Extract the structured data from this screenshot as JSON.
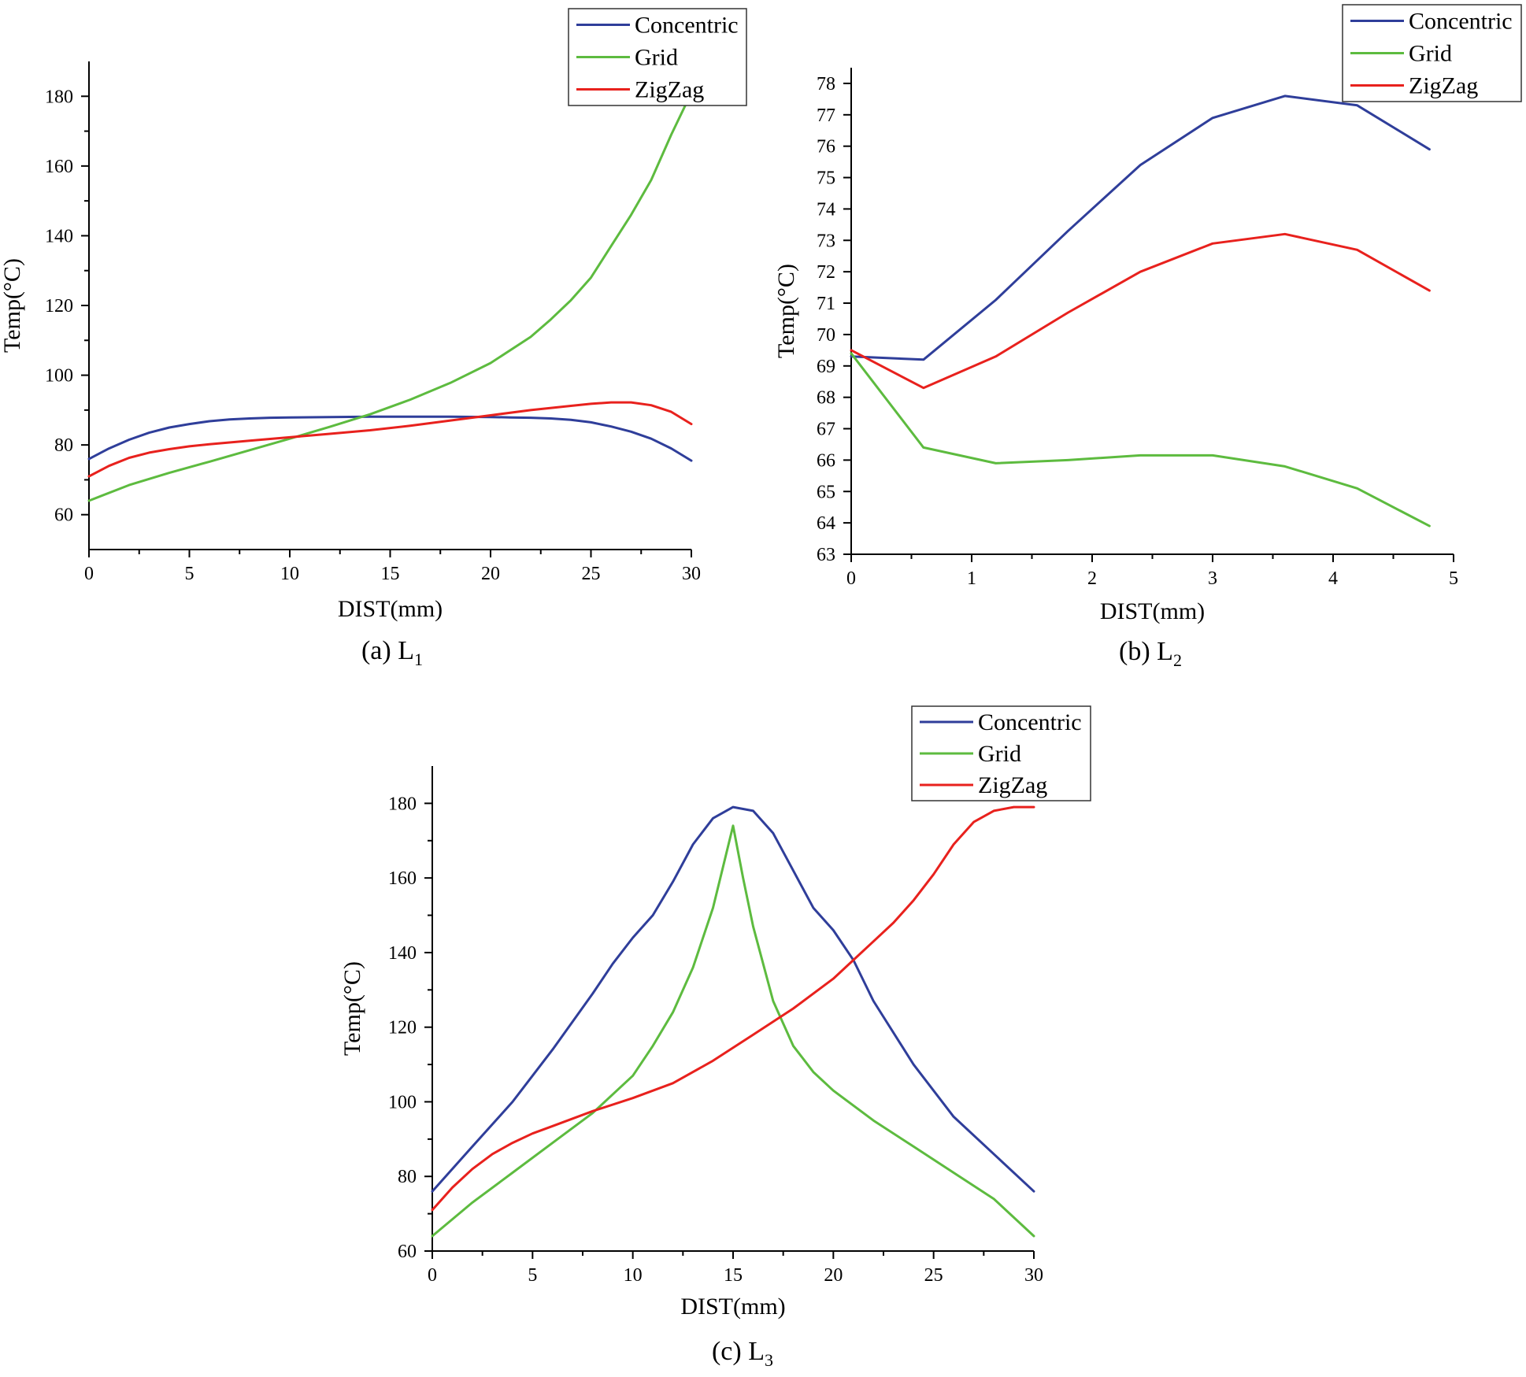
{
  "colors": {
    "Concentric": "#2f3e9a",
    "Grid": "#5dbb3f",
    "ZigZag": "#e8211d"
  },
  "chart_data": [
    {
      "type": "line",
      "caption": "(a) L",
      "caption_sub": "1",
      "xlabel": "DIST(mm)",
      "ylabel": "Temp(°C)",
      "xlim": [
        0,
        30
      ],
      "ylim": [
        50,
        190
      ],
      "xticks": [
        0,
        5,
        10,
        15,
        20,
        25,
        30
      ],
      "yticks": [
        60,
        80,
        100,
        120,
        140,
        160,
        180
      ],
      "legend": [
        "Concentric",
        "Grid",
        "ZigZag"
      ],
      "series": [
        {
          "name": "Concentric",
          "x": [
            0,
            1,
            2,
            3,
            4,
            5,
            6,
            7,
            8,
            9,
            10,
            12,
            14,
            16,
            18,
            20,
            21,
            22,
            23,
            24,
            25,
            26,
            27,
            28,
            29,
            30
          ],
          "y": [
            76,
            79,
            81.5,
            83.5,
            85,
            86,
            86.8,
            87.3,
            87.6,
            87.8,
            87.9,
            88,
            88.1,
            88.1,
            88.1,
            88,
            87.9,
            87.8,
            87.6,
            87.2,
            86.5,
            85.3,
            83.8,
            81.8,
            79,
            75.5
          ]
        },
        {
          "name": "Grid",
          "x": [
            0,
            2,
            4,
            6,
            8,
            10,
            12,
            14,
            16,
            18,
            20,
            22,
            23,
            24,
            25,
            26,
            27,
            28,
            29,
            30
          ],
          "y": [
            64,
            68.5,
            72,
            75.2,
            78.5,
            81.8,
            85.2,
            88.8,
            93,
            97.8,
            103.5,
            111,
            116,
            121.5,
            128,
            137,
            146,
            156,
            169,
            181
          ]
        },
        {
          "name": "ZigZag",
          "x": [
            0,
            1,
            2,
            3,
            4,
            5,
            6,
            8,
            10,
            12,
            14,
            16,
            18,
            20,
            22,
            24,
            25,
            26,
            27,
            28,
            29,
            30
          ],
          "y": [
            71,
            74,
            76.3,
            77.8,
            78.8,
            79.6,
            80.2,
            81.2,
            82.2,
            83.2,
            84.2,
            85.5,
            87,
            88.5,
            90,
            91.2,
            91.8,
            92.2,
            92.2,
            91.4,
            89.5,
            86
          ]
        }
      ]
    },
    {
      "type": "line",
      "caption": "(b) L",
      "caption_sub": "2",
      "xlabel": "DIST(mm)",
      "ylabel": "Temp(°C)",
      "xlim": [
        0,
        5
      ],
      "ylim": [
        63,
        78.5
      ],
      "xticks": [
        0,
        1,
        2,
        3,
        4,
        5
      ],
      "yticks": [
        63,
        64,
        65,
        66,
        67,
        68,
        69,
        70,
        71,
        72,
        73,
        74,
        75,
        76,
        77,
        78
      ],
      "legend": [
        "Concentric",
        "Grid",
        "ZigZag"
      ],
      "series": [
        {
          "name": "Concentric",
          "x": [
            0,
            0.6,
            1.2,
            1.8,
            2.4,
            3.0,
            3.6,
            4.2,
            4.8
          ],
          "y": [
            69.3,
            69.2,
            71.1,
            73.3,
            75.4,
            76.9,
            77.6,
            77.3,
            75.9
          ]
        },
        {
          "name": "Grid",
          "x": [
            0,
            0.6,
            1.2,
            1.8,
            2.4,
            3.0,
            3.6,
            4.2,
            4.8
          ],
          "y": [
            69.4,
            66.4,
            65.9,
            66.0,
            66.15,
            66.15,
            65.8,
            65.1,
            63.9
          ]
        },
        {
          "name": "ZigZag",
          "x": [
            0,
            0.6,
            1.2,
            1.8,
            2.4,
            3.0,
            3.6,
            4.2,
            4.8
          ],
          "y": [
            69.5,
            68.3,
            69.3,
            70.7,
            72.0,
            72.9,
            73.2,
            72.7,
            71.4
          ]
        }
      ]
    },
    {
      "type": "line",
      "caption": "(c) L",
      "caption_sub": "3",
      "xlabel": "DIST(mm)",
      "ylabel": "Temp(°C)",
      "xlim": [
        0,
        30
      ],
      "ylim": [
        60,
        190
      ],
      "xticks": [
        0,
        5,
        10,
        15,
        20,
        25,
        30
      ],
      "yticks": [
        60,
        80,
        100,
        120,
        140,
        160,
        180
      ],
      "legend": [
        "Concentric",
        "Grid",
        "ZigZag"
      ],
      "series": [
        {
          "name": "Concentric",
          "x": [
            0,
            2,
            4,
            6,
            8,
            9,
            10,
            11,
            12,
            13,
            14,
            15,
            16,
            17,
            18,
            19,
            20,
            21,
            22,
            24,
            26,
            28,
            30
          ],
          "y": [
            76,
            88,
            100,
            114,
            129,
            137,
            144,
            150,
            159,
            169,
            176,
            179,
            178,
            172,
            162,
            152,
            146,
            138,
            127,
            110,
            96,
            86,
            76
          ]
        },
        {
          "name": "Grid",
          "x": [
            0,
            2,
            4,
            6,
            8,
            10,
            11,
            12,
            13,
            14,
            14.5,
            15,
            15.5,
            16,
            17,
            18,
            19,
            20,
            22,
            24,
            26,
            28,
            30
          ],
          "y": [
            64,
            73,
            81,
            89,
            97,
            107,
            115,
            124,
            136,
            152,
            163,
            174,
            160,
            147,
            127,
            115,
            108,
            103,
            95,
            88,
            81,
            74,
            64
          ]
        },
        {
          "name": "ZigZag",
          "x": [
            0,
            1,
            2,
            3,
            4,
            5,
            6,
            8,
            10,
            12,
            14,
            16,
            18,
            20,
            21,
            22,
            23,
            24,
            25,
            26,
            27,
            28,
            29,
            30
          ],
          "y": [
            71,
            77,
            82,
            86,
            89,
            91.5,
            93.5,
            97.5,
            101,
            105,
            111,
            118,
            125,
            133,
            138,
            143,
            148,
            154,
            161,
            169,
            175,
            178,
            179,
            179
          ]
        }
      ]
    }
  ]
}
